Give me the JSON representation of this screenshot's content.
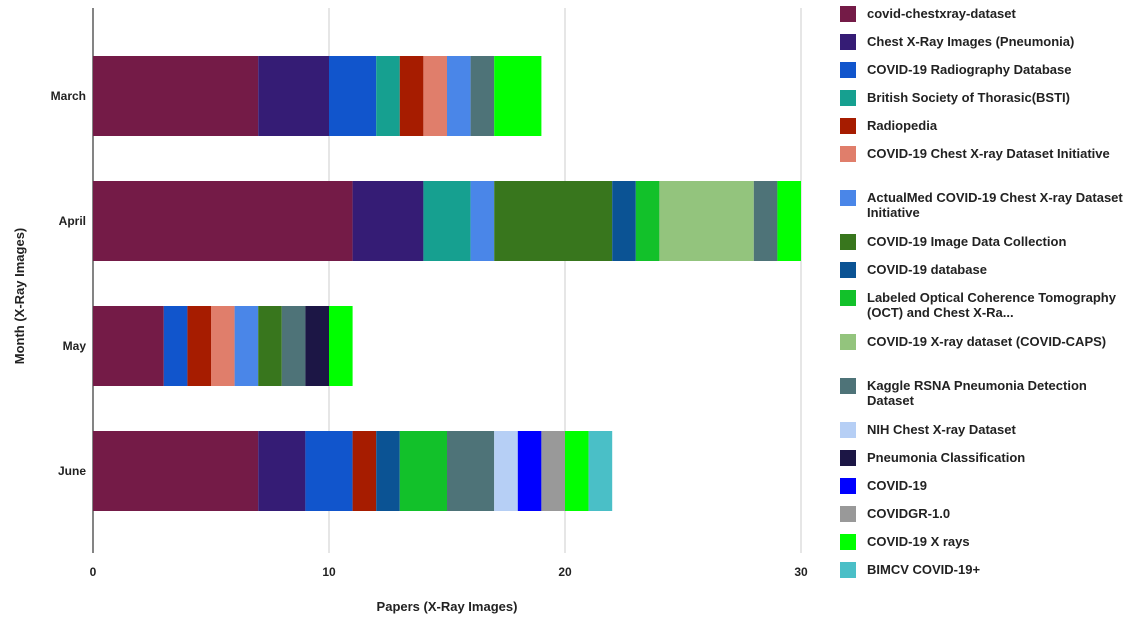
{
  "chart_data": {
    "type": "bar",
    "orientation": "horizontal",
    "stacked": true,
    "categories": [
      "March",
      "April",
      "May",
      "June"
    ],
    "xlabel": "Papers (X-Ray Images)",
    "ylabel": "Month (X-Ray Images)",
    "xlim": [
      0,
      30
    ],
    "x_ticks": [
      "0",
      "10",
      "20",
      "30"
    ],
    "grid": true,
    "legend_position": "right",
    "series": [
      {
        "name": "covid-chestxray-dataset",
        "color": "#741b47",
        "values": [
          7,
          11,
          3,
          7
        ]
      },
      {
        "name": "Chest X-Ray Images (Pneumonia)",
        "color": "#351c75",
        "values": [
          3,
          3,
          0,
          2
        ]
      },
      {
        "name": "COVID-19 Radiography Database",
        "color": "#1155cc",
        "values": [
          2,
          0,
          1,
          2
        ]
      },
      {
        "name": "British Society of Thorasic(BSTI)",
        "color": "#16a090",
        "values": [
          1,
          2,
          0,
          0
        ]
      },
      {
        "name": "Radiopedia",
        "color": "#a61c00",
        "values": [
          1,
          0,
          1,
          1
        ]
      },
      {
        "name": "COVID-19 Chest X-ray Dataset Initiative",
        "color": "#e07e6b",
        "values": [
          1,
          0,
          1,
          0
        ]
      },
      {
        "name": "ActualMed COVID-19 Chest X-ray Dataset Initiative",
        "color": "#4a86e8",
        "values": [
          1,
          1,
          1,
          0
        ]
      },
      {
        "name": "COVID-19 Image Data Collection",
        "color": "#38761d",
        "values": [
          0,
          5,
          1,
          0
        ]
      },
      {
        "name": "COVID-19 database",
        "color": "#0b5394",
        "values": [
          0,
          1,
          0,
          1
        ]
      },
      {
        "name": "Labeled Optical Coherence Tomography (OCT) and Chest X-Ra...",
        "color": "#12c12a",
        "values": [
          0,
          1,
          0,
          2
        ]
      },
      {
        "name": "COVID-19 X-ray dataset (COVID-CAPS)",
        "color": "#93c47d",
        "values": [
          0,
          4,
          0,
          0
        ]
      },
      {
        "name": "Kaggle RSNA Pneumonia Detection Dataset",
        "color": "#4e7378",
        "values": [
          1,
          1,
          1,
          2
        ]
      },
      {
        "name": "NIH Chest X-ray Dataset",
        "color": "#b6cff5",
        "values": [
          0,
          0,
          0,
          1
        ]
      },
      {
        "name": "Pneumonia Classification",
        "color": "#1c1645",
        "values": [
          0,
          0,
          1,
          0
        ]
      },
      {
        "name": "COVID-19",
        "color": "#0000ff",
        "values": [
          0,
          0,
          0,
          1
        ]
      },
      {
        "name": "COVIDGR-1.0",
        "color": "#999999",
        "values": [
          0,
          0,
          0,
          1
        ]
      },
      {
        "name": "COVID-19 X rays",
        "color": "#00ff00",
        "values": [
          2,
          1,
          1,
          1
        ]
      },
      {
        "name": "BIMCV COVID-19+",
        "color": "#4abfc7",
        "values": [
          0,
          0,
          0,
          1
        ]
      }
    ]
  }
}
